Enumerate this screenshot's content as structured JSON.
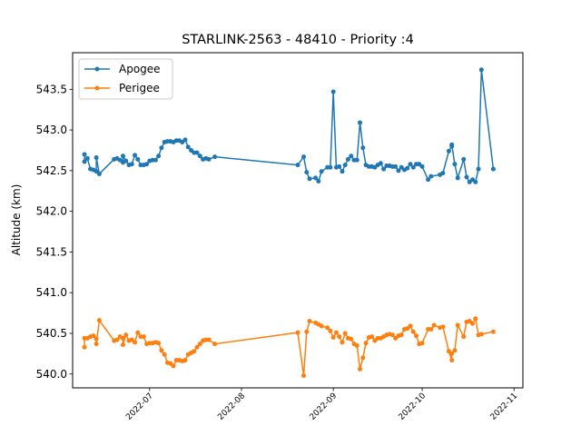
{
  "chart_data": {
    "type": "line",
    "title": "STARLINK-2563 - 48410 - Priority :4",
    "xlabel": "",
    "ylabel": "Altitude (km)",
    "ylim": [
      539.83,
      543.95
    ],
    "xlim": [
      "2022-06-05",
      "2022-11-04"
    ],
    "yticks": [
      "540.0",
      "540.5",
      "541.0",
      "541.5",
      "542.0",
      "542.5",
      "543.0",
      "543.5"
    ],
    "xticks": [
      "2022-07",
      "2022-08",
      "2022-09",
      "2022-10",
      "2022-11"
    ],
    "legend_position": "upper-left",
    "grid": false,
    "series": [
      {
        "name": "Apogee",
        "color": "#1f77b4",
        "points": [
          [
            "2022-06-09",
            542.7
          ],
          [
            "2022-06-09",
            542.61
          ],
          [
            "2022-06-10",
            542.65
          ],
          [
            "2022-06-11",
            542.52
          ],
          [
            "2022-06-12",
            542.51
          ],
          [
            "2022-06-13",
            542.49
          ],
          [
            "2022-06-13",
            542.66
          ],
          [
            "2022-06-14",
            542.46
          ],
          [
            "2022-06-19",
            542.64
          ],
          [
            "2022-06-20",
            542.65
          ],
          [
            "2022-06-21",
            542.63
          ],
          [
            "2022-06-22",
            542.6
          ],
          [
            "2022-06-22",
            542.68
          ],
          [
            "2022-06-23",
            542.62
          ],
          [
            "2022-06-24",
            542.57
          ],
          [
            "2022-06-25",
            542.58
          ],
          [
            "2022-06-26",
            542.69
          ],
          [
            "2022-06-27",
            542.64
          ],
          [
            "2022-06-28",
            542.57
          ],
          [
            "2022-06-29",
            542.57
          ],
          [
            "2022-06-30",
            542.58
          ],
          [
            "2022-07-01",
            542.62
          ],
          [
            "2022-07-02",
            542.63
          ],
          [
            "2022-07-03",
            542.63
          ],
          [
            "2022-07-04",
            542.68
          ],
          [
            "2022-07-05",
            542.78
          ],
          [
            "2022-07-06",
            542.85
          ],
          [
            "2022-07-07",
            542.86
          ],
          [
            "2022-07-08",
            542.86
          ],
          [
            "2022-07-09",
            542.85
          ],
          [
            "2022-07-10",
            542.87
          ],
          [
            "2022-07-11",
            542.87
          ],
          [
            "2022-07-12",
            542.85
          ],
          [
            "2022-07-13",
            542.88
          ],
          [
            "2022-07-14",
            542.79
          ],
          [
            "2022-07-15",
            542.75
          ],
          [
            "2022-07-16",
            542.72
          ],
          [
            "2022-07-17",
            542.72
          ],
          [
            "2022-07-18",
            542.68
          ],
          [
            "2022-07-19",
            542.64
          ],
          [
            "2022-07-20",
            542.65
          ],
          [
            "2022-07-21",
            542.64
          ],
          [
            "2022-07-23",
            542.67
          ],
          [
            "2022-08-20",
            542.57
          ],
          [
            "2022-08-22",
            542.67
          ],
          [
            "2022-08-23",
            542.48
          ],
          [
            "2022-08-24",
            542.4
          ],
          [
            "2022-08-26",
            542.41
          ],
          [
            "2022-08-27",
            542.37
          ],
          [
            "2022-08-28",
            542.49
          ],
          [
            "2022-08-30",
            542.54
          ],
          [
            "2022-08-31",
            542.54
          ],
          [
            "2022-09-01",
            543.47
          ],
          [
            "2022-09-02",
            542.54
          ],
          [
            "2022-09-03",
            542.55
          ],
          [
            "2022-09-04",
            542.49
          ],
          [
            "2022-09-05",
            542.57
          ],
          [
            "2022-09-06",
            542.64
          ],
          [
            "2022-09-07",
            542.68
          ],
          [
            "2022-09-08",
            542.63
          ],
          [
            "2022-09-09",
            542.63
          ],
          [
            "2022-09-10",
            543.09
          ],
          [
            "2022-09-11",
            542.78
          ],
          [
            "2022-09-12",
            542.57
          ],
          [
            "2022-09-13",
            542.55
          ],
          [
            "2022-09-14",
            542.55
          ],
          [
            "2022-09-15",
            542.54
          ],
          [
            "2022-09-16",
            542.57
          ],
          [
            "2022-09-17",
            542.59
          ],
          [
            "2022-09-18",
            542.52
          ],
          [
            "2022-09-19",
            542.56
          ],
          [
            "2022-09-20",
            542.56
          ],
          [
            "2022-09-21",
            542.55
          ],
          [
            "2022-09-22",
            542.55
          ],
          [
            "2022-09-23",
            542.5
          ],
          [
            "2022-09-24",
            542.54
          ],
          [
            "2022-09-25",
            542.51
          ],
          [
            "2022-09-26",
            542.53
          ],
          [
            "2022-09-27",
            542.58
          ],
          [
            "2022-09-28",
            542.54
          ],
          [
            "2022-09-29",
            542.58
          ],
          [
            "2022-09-30",
            542.58
          ],
          [
            "2022-10-01",
            542.55
          ],
          [
            "2022-10-03",
            542.39
          ],
          [
            "2022-10-04",
            542.43
          ],
          [
            "2022-10-07",
            542.45
          ],
          [
            "2022-10-08",
            542.47
          ],
          [
            "2022-10-10",
            542.74
          ],
          [
            "2022-10-11",
            542.8
          ],
          [
            "2022-10-11",
            542.82
          ],
          [
            "2022-10-12",
            542.58
          ],
          [
            "2022-10-13",
            542.41
          ],
          [
            "2022-10-15",
            542.64
          ],
          [
            "2022-10-16",
            542.42
          ],
          [
            "2022-10-17",
            542.36
          ],
          [
            "2022-10-18",
            542.39
          ],
          [
            "2022-10-19",
            542.36
          ],
          [
            "2022-10-20",
            542.52
          ],
          [
            "2022-10-21",
            543.74
          ],
          [
            "2022-10-25",
            542.52
          ]
        ]
      },
      {
        "name": "Perigee",
        "color": "#ff7f0e",
        "points": [
          [
            "2022-06-09",
            540.33
          ],
          [
            "2022-06-09",
            540.44
          ],
          [
            "2022-06-10",
            540.44
          ],
          [
            "2022-06-11",
            540.46
          ],
          [
            "2022-06-12",
            540.47
          ],
          [
            "2022-06-13",
            540.43
          ],
          [
            "2022-06-13",
            540.37
          ],
          [
            "2022-06-14",
            540.66
          ],
          [
            "2022-06-19",
            540.41
          ],
          [
            "2022-06-20",
            540.42
          ],
          [
            "2022-06-21",
            540.46
          ],
          [
            "2022-06-22",
            540.44
          ],
          [
            "2022-06-22",
            540.36
          ],
          [
            "2022-06-23",
            540.48
          ],
          [
            "2022-06-24",
            540.41
          ],
          [
            "2022-06-25",
            540.42
          ],
          [
            "2022-06-26",
            540.39
          ],
          [
            "2022-06-27",
            540.51
          ],
          [
            "2022-06-28",
            540.46
          ],
          [
            "2022-06-29",
            540.46
          ],
          [
            "2022-06-30",
            540.37
          ],
          [
            "2022-07-01",
            540.38
          ],
          [
            "2022-07-02",
            540.38
          ],
          [
            "2022-07-03",
            540.39
          ],
          [
            "2022-07-04",
            540.38
          ],
          [
            "2022-07-05",
            540.29
          ],
          [
            "2022-07-06",
            540.24
          ],
          [
            "2022-07-07",
            540.14
          ],
          [
            "2022-07-08",
            540.13
          ],
          [
            "2022-07-09",
            540.1
          ],
          [
            "2022-07-10",
            540.17
          ],
          [
            "2022-07-11",
            540.17
          ],
          [
            "2022-07-12",
            540.16
          ],
          [
            "2022-07-13",
            540.17
          ],
          [
            "2022-07-14",
            540.24
          ],
          [
            "2022-07-15",
            540.26
          ],
          [
            "2022-07-16",
            540.28
          ],
          [
            "2022-07-17",
            540.33
          ],
          [
            "2022-07-18",
            540.37
          ],
          [
            "2022-07-19",
            540.41
          ],
          [
            "2022-07-20",
            540.42
          ],
          [
            "2022-07-21",
            540.42
          ],
          [
            "2022-07-23",
            540.37
          ],
          [
            "2022-08-20",
            540.51
          ],
          [
            "2022-08-22",
            539.98
          ],
          [
            "2022-08-23",
            540.52
          ],
          [
            "2022-08-24",
            540.65
          ],
          [
            "2022-08-26",
            540.63
          ],
          [
            "2022-08-27",
            540.61
          ],
          [
            "2022-08-28",
            540.59
          ],
          [
            "2022-08-30",
            540.57
          ],
          [
            "2022-08-31",
            540.53
          ],
          [
            "2022-09-01",
            540.45
          ],
          [
            "2022-09-02",
            540.51
          ],
          [
            "2022-09-03",
            540.46
          ],
          [
            "2022-09-04",
            540.39
          ],
          [
            "2022-09-05",
            540.5
          ],
          [
            "2022-09-06",
            540.44
          ],
          [
            "2022-09-07",
            540.43
          ],
          [
            "2022-09-08",
            540.37
          ],
          [
            "2022-09-09",
            540.35
          ],
          [
            "2022-09-10",
            540.06
          ],
          [
            "2022-09-11",
            540.2
          ],
          [
            "2022-09-12",
            540.38
          ],
          [
            "2022-09-13",
            540.45
          ],
          [
            "2022-09-14",
            540.46
          ],
          [
            "2022-09-15",
            540.41
          ],
          [
            "2022-09-16",
            540.44
          ],
          [
            "2022-09-17",
            540.44
          ],
          [
            "2022-09-18",
            540.46
          ],
          [
            "2022-09-19",
            540.48
          ],
          [
            "2022-09-20",
            540.49
          ],
          [
            "2022-09-21",
            540.48
          ],
          [
            "2022-09-22",
            540.44
          ],
          [
            "2022-09-23",
            540.47
          ],
          [
            "2022-09-24",
            540.48
          ],
          [
            "2022-09-25",
            540.55
          ],
          [
            "2022-09-26",
            540.56
          ],
          [
            "2022-09-27",
            540.59
          ],
          [
            "2022-09-28",
            540.52
          ],
          [
            "2022-09-29",
            540.47
          ],
          [
            "2022-09-30",
            540.37
          ],
          [
            "2022-10-01",
            540.38
          ],
          [
            "2022-10-03",
            540.55
          ],
          [
            "2022-10-04",
            540.55
          ],
          [
            "2022-10-05",
            540.6
          ],
          [
            "2022-10-07",
            540.57
          ],
          [
            "2022-10-08",
            540.58
          ],
          [
            "2022-10-10",
            540.28
          ],
          [
            "2022-10-11",
            540.17
          ],
          [
            "2022-10-11",
            540.25
          ],
          [
            "2022-10-12",
            540.29
          ],
          [
            "2022-10-13",
            540.6
          ],
          [
            "2022-10-15",
            540.46
          ],
          [
            "2022-10-16",
            540.64
          ],
          [
            "2022-10-17",
            540.65
          ],
          [
            "2022-10-18",
            540.62
          ],
          [
            "2022-10-19",
            540.68
          ],
          [
            "2022-10-20",
            540.48
          ],
          [
            "2022-10-21",
            540.49
          ],
          [
            "2022-10-25",
            540.52
          ]
        ]
      }
    ]
  }
}
